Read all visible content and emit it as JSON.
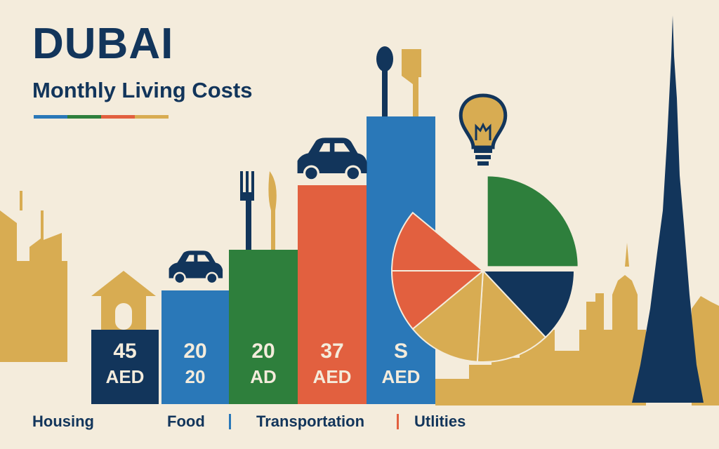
{
  "title": "DUBAI",
  "subtitle": "Monthly Living Costs",
  "colors": {
    "background": "#f4ecdc",
    "navy": "#12355b",
    "blue": "#2a78b8",
    "green": "#2e7f3c",
    "red": "#e2603f",
    "gold": "#d8ac52"
  },
  "title_stripe_colors": [
    "#2a78b8",
    "#2e7f3c",
    "#e2603f",
    "#d8ac52"
  ],
  "chart_data": [
    {
      "type": "bar",
      "bars": [
        {
          "line1": "45",
          "line2": "AED",
          "color": "#12355b",
          "icon": "house-icon"
        },
        {
          "line1": "20",
          "line2": "20",
          "color": "#2a78b8",
          "icon": "car-icon"
        },
        {
          "line1": "20",
          "line2": "AD",
          "color": "#2e7f3c",
          "icon": "fork-knife-icon"
        },
        {
          "line1": "37",
          "line2": "AED",
          "color": "#e2603f",
          "icon": "car-icon"
        },
        {
          "line1": "S",
          "line2": "AED",
          "color": "#2a78b8",
          "icon": "spoon-knife-icon"
        }
      ],
      "legend": [
        {
          "label": "Housing"
        },
        {
          "label": "Food",
          "separator_color": "#2a78b8"
        },
        {
          "label": "Transportation",
          "separator_color": "#e2603f"
        },
        {
          "label": "Utlities"
        }
      ]
    },
    {
      "type": "pie",
      "icon": "lightbulb-icon",
      "slices": [
        {
          "percent": 25,
          "color": "#2e7f3c"
        },
        {
          "percent": 13,
          "color": "#12355b"
        },
        {
          "percent": 13,
          "color": "#d8ac52"
        },
        {
          "percent": 13,
          "color": "#d8ac52"
        },
        {
          "percent": 11,
          "color": "#e2603f"
        },
        {
          "percent": 11,
          "color": "#e2603f"
        }
      ]
    }
  ]
}
